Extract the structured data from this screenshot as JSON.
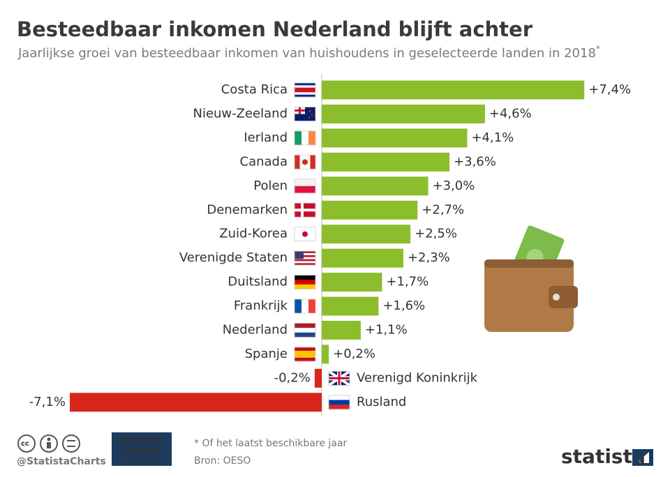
{
  "chart_data": {
    "type": "bar",
    "orientation": "horizontal",
    "title": "Besteedbaar inkomen Nederland blijft achter",
    "subtitle": "Jaarlijkse groei van besteedbaar inkomen van huishoudens in geselecteerde landen in 2018",
    "subtitle_mark": "*",
    "categories": [
      "Costa Rica",
      "Nieuw-Zeeland",
      "Ierland",
      "Canada",
      "Polen",
      "Denemarken",
      "Zuid-Korea",
      "Verenigde Staten",
      "Duitsland",
      "Frankrijk",
      "Nederland",
      "Spanje",
      "Verenigd Koninkrijk",
      "Rusland"
    ],
    "values": [
      7.4,
      4.6,
      4.1,
      3.6,
      3.0,
      2.7,
      2.5,
      2.3,
      1.7,
      1.6,
      1.1,
      0.2,
      -0.2,
      -7.1
    ],
    "value_labels": [
      "+7,4%",
      "+4,6%",
      "+4,1%",
      "+3,6%",
      "+3,0%",
      "+2,7%",
      "+2,5%",
      "+2,3%",
      "+1,7%",
      "+1,6%",
      "+1,1%",
      "+0,2%",
      "-0,2%",
      "-7,1%"
    ],
    "positive_color": "#8cbd2d",
    "negative_color": "#d9261c"
  },
  "footer": {
    "handle": "@StatistaCharts",
    "partner": [
      "BUSINESS",
      "INSIDER",
      "NEDERLAND"
    ],
    "note": "* Of het laatst beschikbare jaar",
    "source": "Bron: OESO",
    "brand": "statista"
  }
}
